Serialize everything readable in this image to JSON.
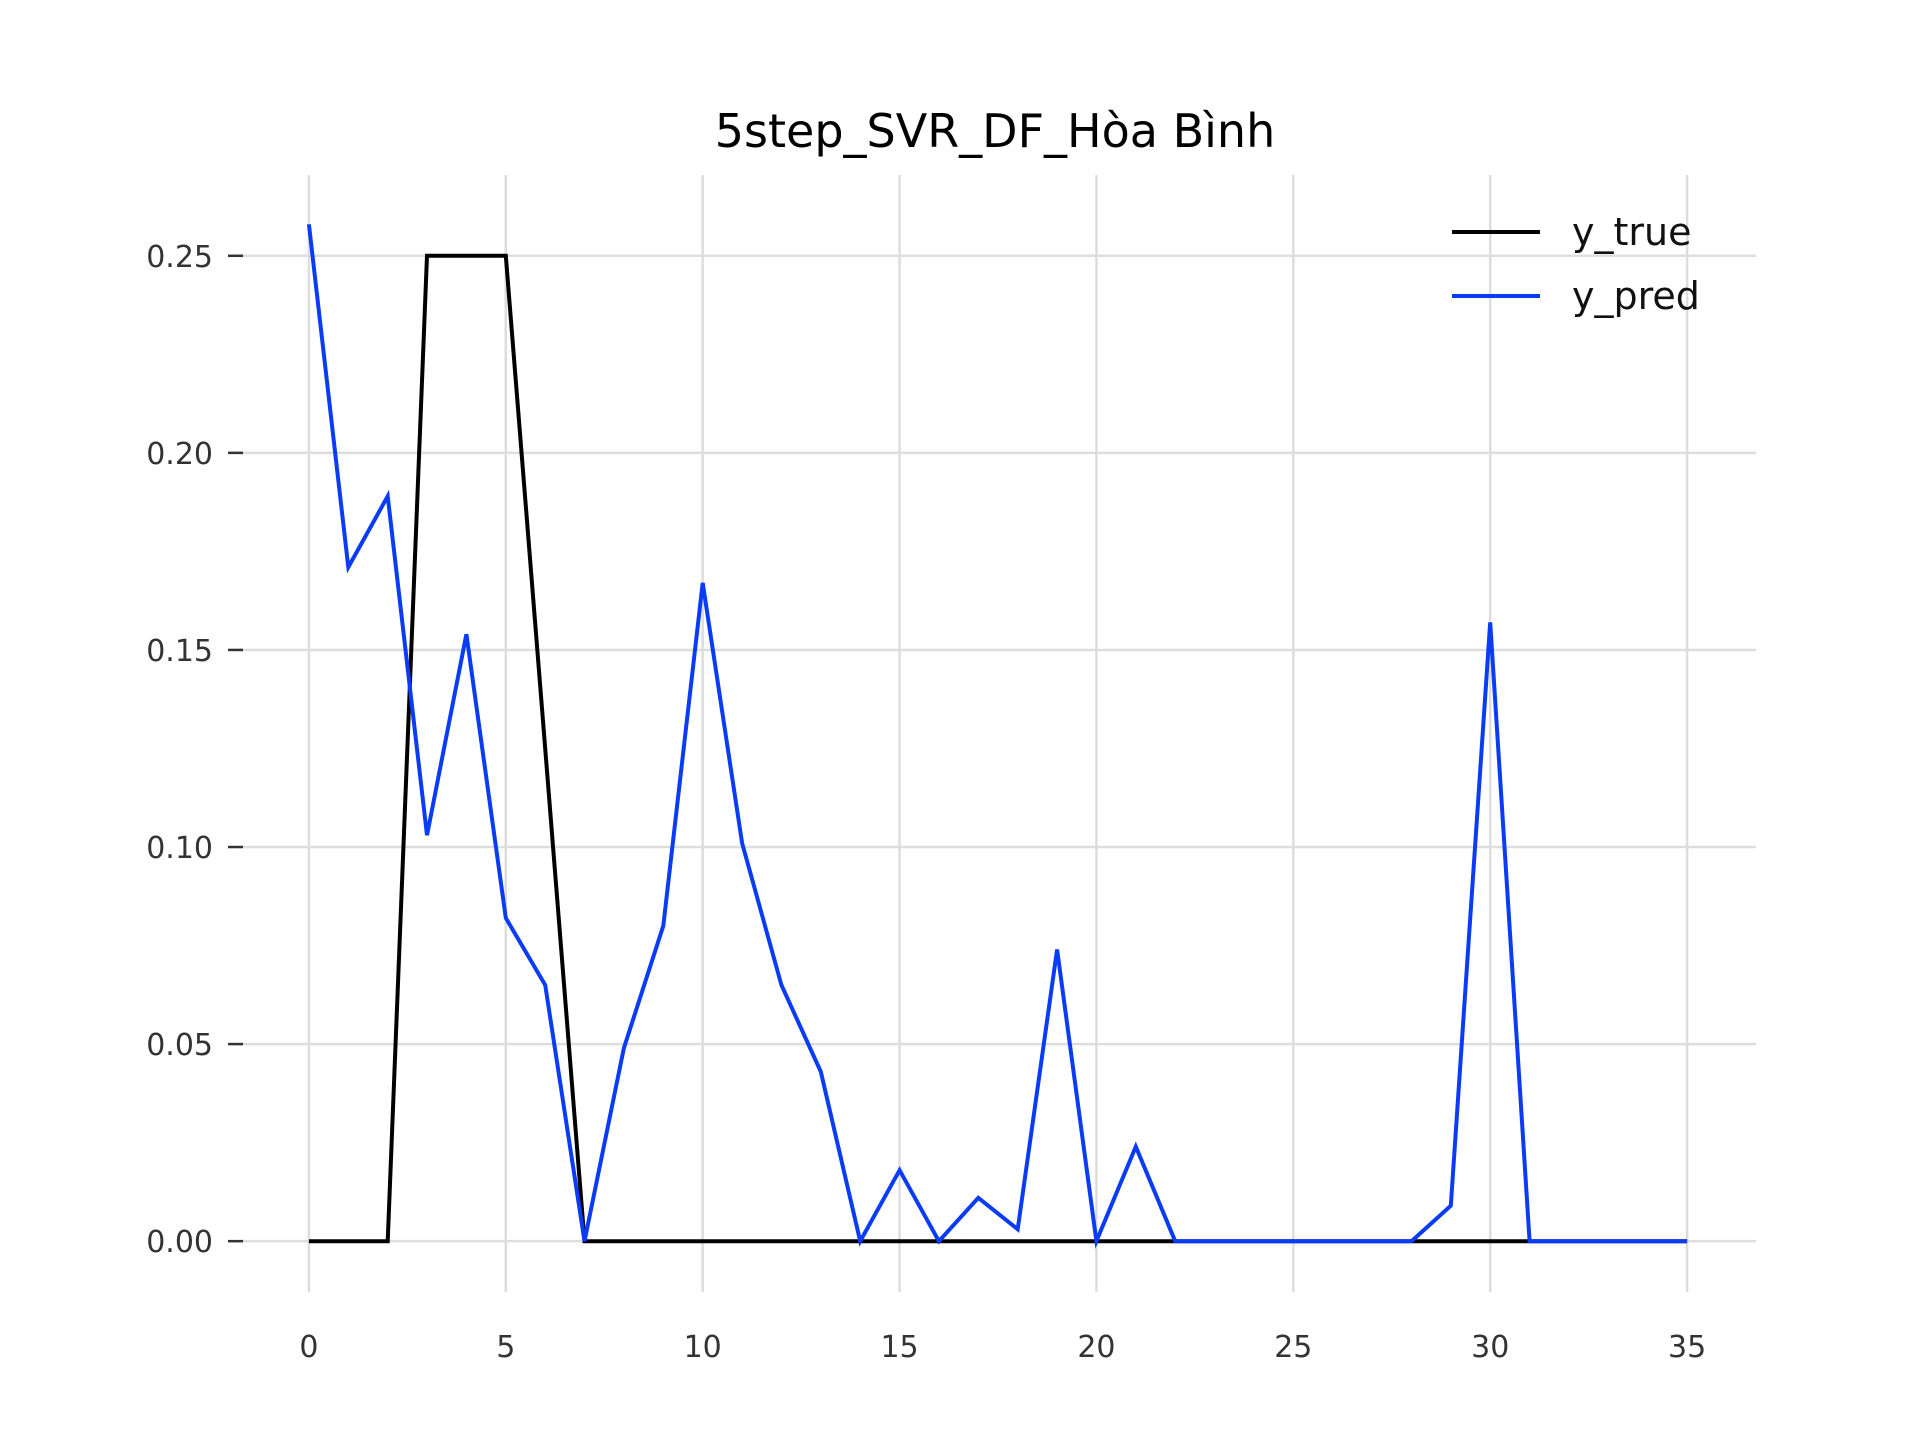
{
  "chart_data": {
    "type": "line",
    "title": "5step_SVR_DF_Hòa Bình",
    "xlabel": "",
    "ylabel": "",
    "xlim": [
      -1.75,
      36.75
    ],
    "ylim": [
      -0.0129,
      0.2705
    ],
    "xticks": [
      0,
      5,
      10,
      15,
      20,
      25,
      30,
      35
    ],
    "xtick_labels": [
      "0",
      "5",
      "10",
      "15",
      "20",
      "25",
      "30",
      "35"
    ],
    "yticks": [
      0.0,
      0.05,
      0.1,
      0.15,
      0.2,
      0.25
    ],
    "ytick_labels": [
      "0.00",
      "0.05",
      "0.10",
      "0.15",
      "0.20",
      "0.25"
    ],
    "grid": true,
    "legend_position": "top-right",
    "x": [
      0,
      1,
      2,
      3,
      4,
      5,
      6,
      7,
      8,
      9,
      10,
      11,
      12,
      13,
      14,
      15,
      16,
      17,
      18,
      19,
      20,
      21,
      22,
      23,
      24,
      25,
      26,
      27,
      28,
      29,
      30,
      31,
      32,
      33,
      34,
      35
    ],
    "series": [
      {
        "name": "y_true",
        "color": "#000000",
        "values": [
          0,
          0,
          0,
          0.25,
          0.25,
          0.25,
          0.125,
          0,
          0,
          0,
          0,
          0,
          0,
          0,
          0,
          0,
          0,
          0,
          0,
          0,
          0,
          0,
          0,
          0,
          0,
          0,
          0,
          0,
          0,
          0,
          0,
          0,
          0,
          0,
          0,
          0
        ]
      },
      {
        "name": "y_pred",
        "color": "#0a3cf5",
        "values": [
          0.258,
          0.171,
          0.189,
          0.103,
          0.154,
          0.082,
          0.065,
          0,
          0.049,
          0.08,
          0.167,
          0.101,
          0.065,
          0.043,
          0,
          0.018,
          0,
          0.011,
          0.003,
          0.074,
          0,
          0.024,
          0,
          0,
          0,
          0,
          0,
          0,
          0,
          0.009,
          0.157,
          0,
          0,
          0,
          0,
          0
        ]
      }
    ]
  }
}
